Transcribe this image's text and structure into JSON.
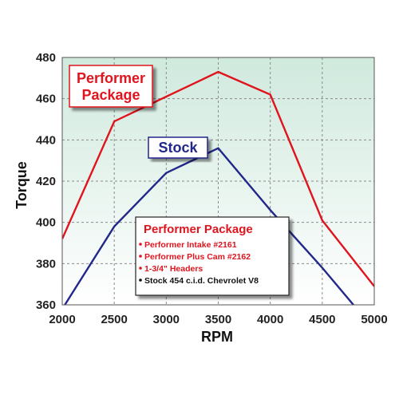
{
  "chart_data": {
    "type": "line",
    "xlabel": "RPM",
    "ylabel": "Torque",
    "xlim": [
      2000,
      5000
    ],
    "ylim": [
      360,
      480
    ],
    "x_ticks": [
      "2000",
      "2500",
      "3000",
      "3500",
      "4000",
      "4500",
      "5000"
    ],
    "y_ticks": [
      "480",
      "460",
      "440",
      "420",
      "400",
      "380",
      "360"
    ],
    "grid": true,
    "series": [
      {
        "name": "Performer Package",
        "color": "#e0141e",
        "points": [
          [
            2000,
            392
          ],
          [
            2500,
            449
          ],
          [
            3000,
            461
          ],
          [
            3500,
            473
          ],
          [
            4000,
            462
          ],
          [
            4500,
            401
          ],
          [
            5000,
            369
          ]
        ]
      },
      {
        "name": "Stock",
        "color": "#22278a",
        "points": [
          [
            2000,
            358
          ],
          [
            2500,
            398
          ],
          [
            3000,
            424
          ],
          [
            3500,
            436
          ],
          [
            4000,
            406
          ],
          [
            4500,
            378
          ],
          [
            4800,
            360
          ]
        ]
      }
    ],
    "annotations": {
      "performer_label": [
        "Performer",
        "Package"
      ],
      "stock_label": "Stock"
    },
    "legend_box": {
      "title": "Performer Package",
      "items": [
        {
          "text": "Performer Intake #2161",
          "color": "#e0141e"
        },
        {
          "text": "Performer Plus Cam #2162",
          "color": "#e0141e"
        },
        {
          "text": "1-3/4\" Headers",
          "color": "#e0141e"
        },
        {
          "text": "Stock 454 c.i.d. Chevrolet V8",
          "color": "#111111"
        }
      ]
    }
  }
}
